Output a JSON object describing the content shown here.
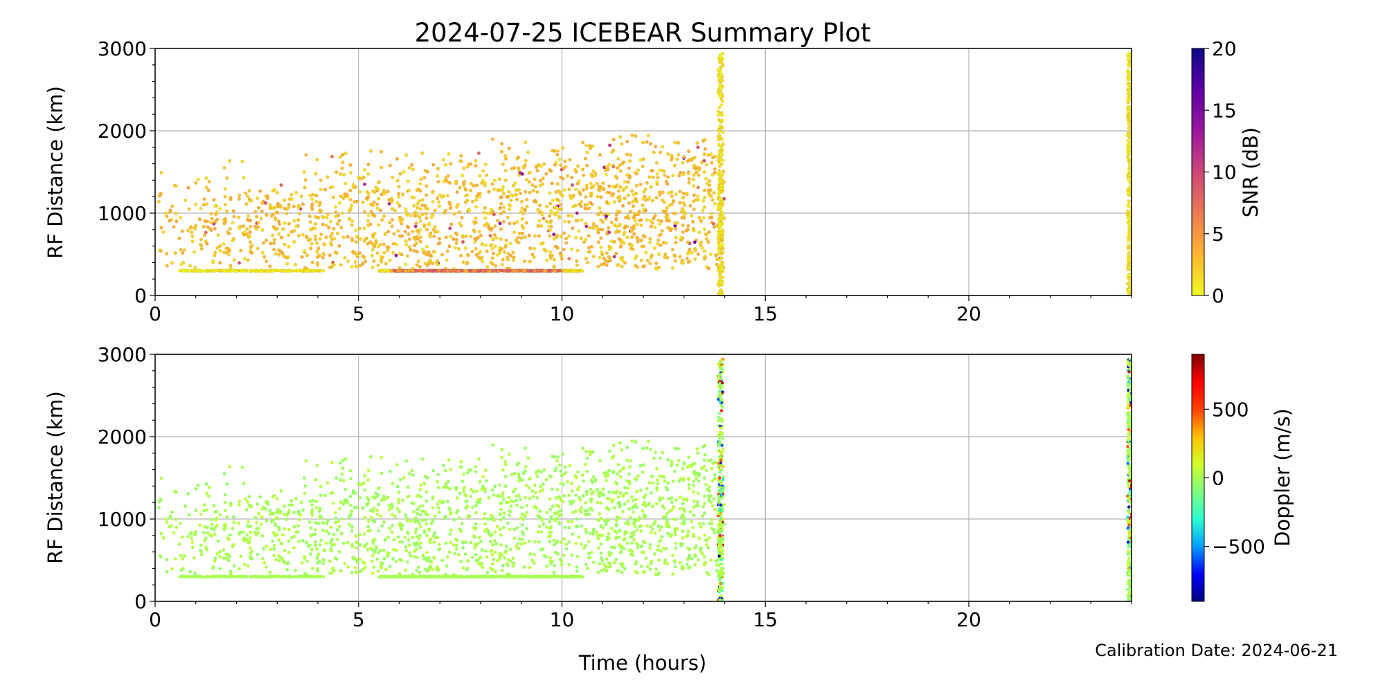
{
  "chart_data": {
    "type": "scatter",
    "title": "2024-07-25 ICEBEAR Summary Plot",
    "footnote": "Calibration Date: 2024-06-21",
    "x_label": "Time (hours)",
    "xlim": [
      0,
      24
    ],
    "x_ticks": [
      0,
      5,
      10,
      15,
      20
    ],
    "y_ticks": [
      0,
      1000,
      2000,
      3000
    ],
    "grid": true,
    "panels": [
      {
        "y_label": "RF Distance (km)",
        "ylim": [
          0,
          3000
        ],
        "color_variable": "SNR",
        "colorbar": {
          "label": "SNR (dB)",
          "range": [
            0,
            20
          ],
          "ticks": [
            0,
            5,
            10,
            15,
            20
          ],
          "tick_labels": [
            "0",
            "5",
            "10",
            "15",
            "20"
          ],
          "colormap": "plasma_r",
          "stops": [
            "#f0f921",
            "#fdb42f",
            "#ed7953",
            "#cc4778",
            "#9c179e",
            "#5c01a6",
            "#0d0887"
          ]
        },
        "approx_clusters": [
          {
            "description": "scattered echoes",
            "x_range": [
              0.0,
              14.0
            ],
            "y_range": [
              300,
              1950
            ],
            "typical_snr_db": [
              1,
              4
            ]
          },
          {
            "description": "ground clutter band",
            "x_range": [
              0.5,
              10.5
            ],
            "y_value": 300,
            "typical_snr_db": [
              0,
              9
            ]
          },
          {
            "description": "vertical stripe",
            "x_value": 13.9,
            "y_range": [
              0,
              2950
            ],
            "typical_snr_db": [
              0,
              2
            ]
          },
          {
            "description": "vertical stripe",
            "x_value": 24.0,
            "y_range": [
              0,
              2950
            ],
            "typical_snr_db": [
              0,
              1
            ]
          }
        ]
      },
      {
        "y_label": "RF Distance (km)",
        "ylim": [
          0,
          3000
        ],
        "color_variable": "Doppler",
        "colorbar": {
          "label": "Doppler (m/s)",
          "range": [
            -900,
            900
          ],
          "ticks": [
            -500,
            0,
            500
          ],
          "tick_labels": [
            "−500",
            "0",
            "500"
          ],
          "colormap": "jet_r",
          "stops": [
            "#000080",
            "#0000ff",
            "#00a0ff",
            "#2affd0",
            "#80ff7f",
            "#d0ff2a",
            "#ffc000",
            "#ff4000",
            "#ff0000",
            "#800000"
          ]
        },
        "approx_clusters": [
          {
            "description": "scattered echoes",
            "x_range": [
              0.0,
              14.0
            ],
            "y_range": [
              300,
              1950
            ],
            "typical_doppler_ms": [
              -50,
              50
            ]
          },
          {
            "description": "ground clutter band",
            "x_range": [
              0.5,
              10.5
            ],
            "y_value": 300,
            "typical_doppler_ms": [
              0,
              0
            ]
          },
          {
            "description": "vertical stripe",
            "x_value": 13.9,
            "y_range": [
              0,
              2950
            ],
            "typical_doppler_ms": [
              -900,
              900
            ]
          },
          {
            "description": "vertical stripe",
            "x_value": 24.0,
            "y_range": [
              0,
              2950
            ],
            "typical_doppler_ms": [
              -900,
              900
            ]
          }
        ]
      }
    ]
  }
}
